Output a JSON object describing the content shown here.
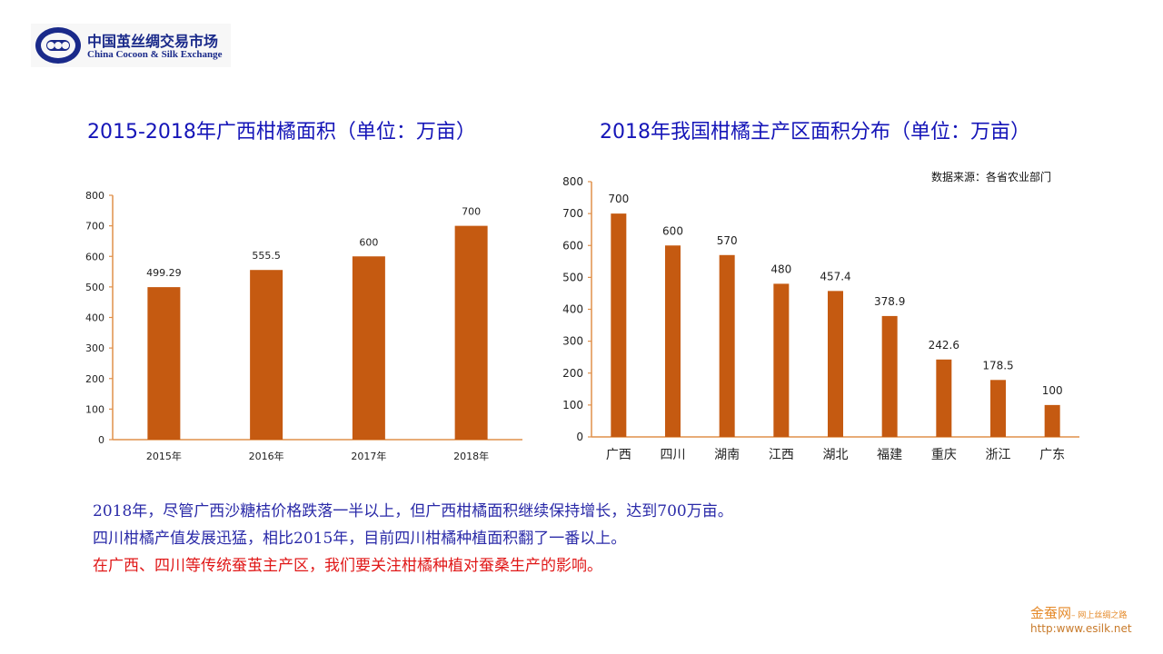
{
  "header": {
    "logo_cn": "中国茧丝绸交易市场",
    "logo_en": "China Cocoon & Silk Exchange"
  },
  "colors": {
    "bar": "#c55a11",
    "axis": "#e0904a",
    "title": "#1515b8"
  },
  "chart_data": [
    {
      "type": "bar",
      "title": "2015-2018年广西柑橘面积（单位：万亩）",
      "xlabel": "",
      "ylabel": "",
      "categories": [
        "2015年",
        "2016年",
        "2017年",
        "2018年"
      ],
      "values": [
        499.29,
        555.5,
        600,
        700
      ],
      "value_labels": [
        "499.29",
        "555.5",
        "600",
        "700"
      ],
      "ylim": [
        0,
        800
      ],
      "yticks": [
        0,
        100,
        200,
        300,
        400,
        500,
        600,
        700,
        800
      ],
      "grid": false
    },
    {
      "type": "bar",
      "title": "2018年我国柑橘主产区面积分布（单位：万亩）",
      "source": "数据来源：各省农业部门",
      "xlabel": "",
      "ylabel": "",
      "categories": [
        "广西",
        "四川",
        "湖南",
        "江西",
        "湖北",
        "福建",
        "重庆",
        "浙江",
        "广东"
      ],
      "values": [
        700,
        600,
        570,
        480,
        457.4,
        378.9,
        242.6,
        178.5,
        100
      ],
      "value_labels": [
        "700",
        "600",
        "570",
        "480",
        "457.4",
        "378.9",
        "242.6",
        "178.5",
        "100"
      ],
      "ylim": [
        0,
        800
      ],
      "yticks": [
        0,
        100,
        200,
        300,
        400,
        500,
        600,
        700,
        800
      ],
      "grid": false
    }
  ],
  "notes": [
    "2018年，尽管广西沙糖桔价格跌落一半以上，但广西柑橘面积继续保持增长，达到700万亩。",
    "四川柑橘产值发展迅猛，相比2015年，目前四川柑橘种植面积翻了一番以上。",
    "在广西、四川等传统蚕茧主产区，我们要关注柑橘种植对蚕桑生产的影响。"
  ],
  "footer": {
    "brand": "金蚕网",
    "slogan": "– 网上丝绸之路",
    "url": "http:www.esilk.net"
  }
}
